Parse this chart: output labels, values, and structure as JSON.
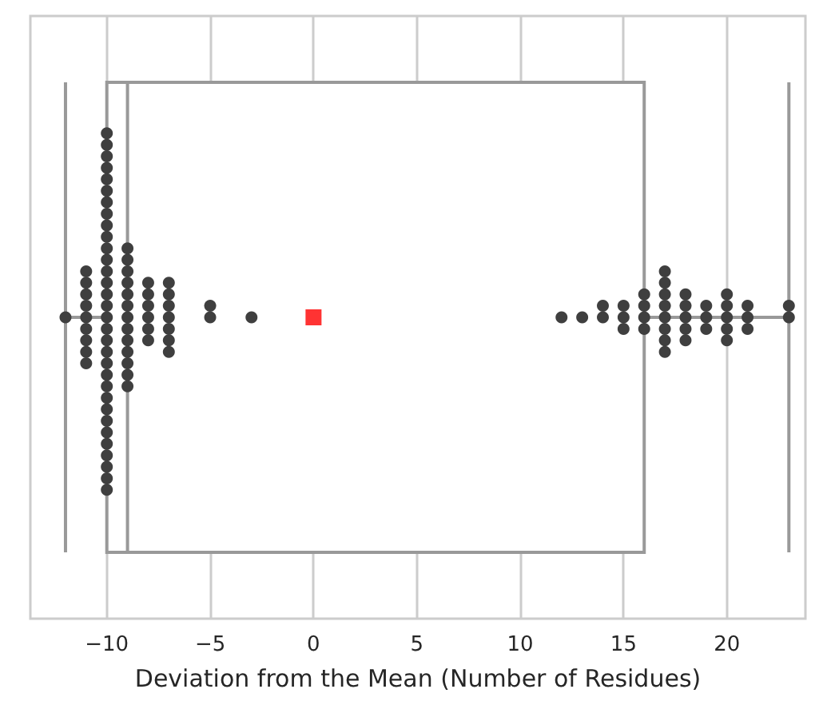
{
  "chart_data": {
    "type": "box",
    "orientation": "horizontal",
    "xlabel": "Deviation from the Mean (Number of Residues)",
    "categories": [
      null
    ],
    "xlim": [
      -13.7,
      23.8
    ],
    "xticks": [
      -10,
      -5,
      0,
      5,
      10,
      15,
      20
    ],
    "grid": "x",
    "series": [
      {
        "type": "box",
        "color": "#999999",
        "boxes": [
          {
            "low": -12,
            "q1": -10,
            "median": -9,
            "q3": 16,
            "high": 23,
            "mean": 0
          }
        ]
      },
      {
        "type": "scatter",
        "color": "#3f3f3f",
        "marker": "circle",
        "x": [
          null,
          null,
          null,
          null,
          null,
          null,
          null,
          null,
          null,
          null,
          null,
          null,
          null,
          null,
          null,
          null,
          null,
          null,
          null,
          null,
          null,
          null,
          null,
          null,
          null,
          null,
          null,
          null,
          null,
          null,
          null,
          null,
          null,
          null,
          null,
          null,
          null,
          null,
          null,
          null,
          null,
          null,
          null,
          null,
          null,
          null,
          null,
          null,
          null,
          null,
          null,
          null,
          null,
          null,
          null,
          null,
          null,
          null,
          null,
          null,
          null,
          null,
          null,
          null,
          null,
          null,
          null,
          null,
          null,
          null,
          null,
          null,
          null,
          null,
          null,
          null,
          null,
          null,
          null,
          null,
          null,
          null,
          null,
          null,
          null,
          null,
          null,
          null,
          null,
          null,
          null,
          null,
          null,
          null,
          null,
          null,
          null,
          null,
          null,
          null,
          null,
          null,
          null,
          null,
          null,
          null,
          null,
          null
        ],
        "values": [
          -12,
          -11,
          -11,
          -11,
          -11,
          -11,
          -11,
          -11,
          -11,
          -11,
          -10,
          -10,
          -10,
          -10,
          -10,
          -10,
          -10,
          -10,
          -10,
          -10,
          -10,
          -10,
          -10,
          -10,
          -10,
          -10,
          -10,
          -10,
          -10,
          -10,
          -10,
          -10,
          -10,
          -10,
          -10,
          -10,
          -10,
          -10,
          -10,
          -10,
          -10,
          -10,
          -9,
          -9,
          -9,
          -9,
          -9,
          -9,
          -9,
          -9,
          -9,
          -9,
          -9,
          -9,
          -9,
          -8,
          -8,
          -8,
          -8,
          -8,
          -8,
          -7,
          -7,
          -7,
          -7,
          -7,
          -7,
          -7,
          -5,
          -5,
          -3,
          12,
          13,
          14,
          14,
          15,
          15,
          15,
          16,
          16,
          16,
          16,
          17,
          17,
          17,
          17,
          17,
          17,
          17,
          17,
          18,
          18,
          18,
          18,
          18,
          19,
          19,
          19,
          20,
          20,
          20,
          20,
          20,
          21,
          21,
          21,
          23,
          23
        ]
      }
    ]
  }
}
